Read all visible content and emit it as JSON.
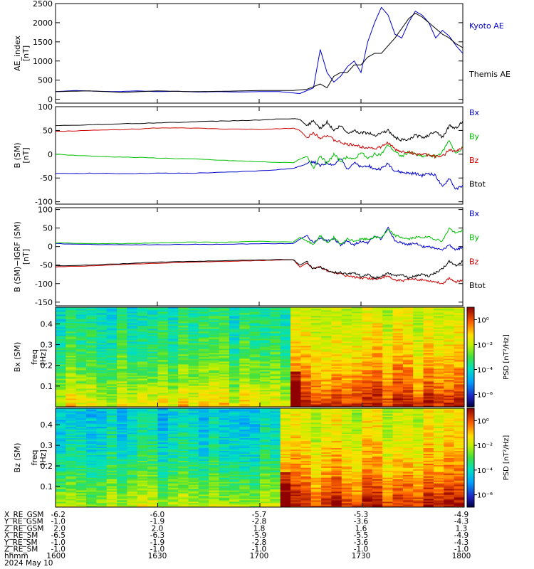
{
  "chart_data": [
    {
      "type": "line",
      "title": "",
      "ylabel": "AE_index",
      "yunit": "[nT]",
      "ylim": [
        -100,
        2500
      ],
      "yticks": [
        "2500",
        "2000",
        "1500",
        "1000",
        "500",
        "0"
      ],
      "ytick_values": [
        2500,
        2000,
        1500,
        1000,
        500,
        0
      ],
      "xlim": [
        0,
        120
      ],
      "series": [
        {
          "name": "Kyoto AE",
          "color": "#0000cc",
          "x": [
            0,
            6,
            12,
            18,
            24,
            30,
            36,
            42,
            48,
            54,
            60,
            66,
            72,
            76,
            78,
            80,
            82,
            84,
            86,
            88,
            90,
            92,
            94,
            96,
            98,
            100,
            102,
            104,
            106,
            108,
            110,
            112,
            114,
            116,
            118,
            120
          ],
          "y": [
            200,
            230,
            210,
            200,
            220,
            200,
            210,
            190,
            200,
            190,
            200,
            200,
            150,
            300,
            1300,
            700,
            450,
            600,
            850,
            1000,
            700,
            1500,
            2000,
            2400,
            2200,
            1700,
            1600,
            2000,
            2300,
            2200,
            2000,
            1600,
            1800,
            1650,
            1400,
            1200
          ]
        },
        {
          "name": "Themis AE",
          "color": "#000000",
          "x": [
            0,
            10,
            20,
            30,
            40,
            50,
            60,
            70,
            74,
            78,
            80,
            82,
            84,
            86,
            88,
            90,
            92,
            94,
            96,
            98,
            100,
            102,
            104,
            106,
            108,
            110,
            112,
            114,
            116,
            118,
            120
          ],
          "y": [
            200,
            220,
            180,
            220,
            200,
            210,
            230,
            230,
            260,
            400,
            300,
            600,
            700,
            700,
            900,
            900,
            1100,
            1200,
            1200,
            1400,
            1600,
            1850,
            2100,
            2250,
            2150,
            2000,
            1850,
            1700,
            1600,
            1450,
            1350
          ]
        }
      ]
    },
    {
      "type": "line",
      "ylabel": "B (SM)",
      "yunit": "[nT]",
      "ylim": [
        -105,
        100
      ],
      "yticks": [
        "100",
        "50",
        "0",
        "-50",
        "-100"
      ],
      "ytick_values": [
        100,
        50,
        0,
        -50,
        -100
      ],
      "xlim": [
        0,
        120
      ],
      "series": [
        {
          "name": "Bx",
          "color": "#0000cc",
          "x": [
            0,
            10,
            20,
            30,
            40,
            50,
            60,
            70,
            72,
            74,
            76,
            78,
            80,
            82,
            84,
            86,
            88,
            90,
            92,
            94,
            96,
            98,
            100,
            102,
            104,
            106,
            108,
            110,
            112,
            114,
            116,
            118,
            120
          ],
          "y": [
            -41,
            -40,
            -41,
            -40,
            -40,
            -38,
            -35,
            -30,
            -25,
            -20,
            -15,
            -25,
            -18,
            -23,
            -10,
            -30,
            -18,
            -28,
            -23,
            -32,
            -30,
            -20,
            -35,
            -38,
            -40,
            -41,
            -45,
            -40,
            -45,
            -70,
            -50,
            -75,
            -65
          ]
        },
        {
          "name": "By",
          "color": "#00c000",
          "x": [
            0,
            10,
            20,
            30,
            40,
            50,
            60,
            70,
            72,
            74,
            76,
            78,
            80,
            82,
            84,
            86,
            88,
            90,
            92,
            94,
            96,
            98,
            100,
            102,
            104,
            106,
            108,
            110,
            112,
            114,
            116,
            118,
            120
          ],
          "y": [
            0,
            -4,
            -6,
            -8,
            -10,
            -13,
            -16,
            -18,
            -10,
            -5,
            -30,
            -2,
            -20,
            0,
            -15,
            -5,
            -12,
            5,
            -10,
            0,
            0,
            20,
            5,
            -5,
            5,
            0,
            -5,
            -2,
            -5,
            5,
            30,
            0,
            15
          ]
        },
        {
          "name": "Bz",
          "color": "#cc0000",
          "x": [
            0,
            10,
            20,
            30,
            40,
            50,
            60,
            70,
            72,
            74,
            76,
            78,
            80,
            82,
            84,
            86,
            88,
            90,
            92,
            94,
            96,
            98,
            100,
            102,
            104,
            106,
            108,
            110,
            112,
            114,
            116,
            118,
            120
          ],
          "y": [
            48,
            50,
            52,
            55,
            55,
            53,
            52,
            55,
            50,
            35,
            45,
            35,
            40,
            30,
            25,
            20,
            20,
            15,
            15,
            12,
            15,
            25,
            10,
            5,
            5,
            0,
            0,
            -2,
            -5,
            -5,
            10,
            5,
            15
          ]
        },
        {
          "name": "Btot",
          "color": "#000000",
          "x": [
            0,
            10,
            20,
            30,
            40,
            50,
            60,
            70,
            72,
            74,
            76,
            78,
            80,
            82,
            84,
            86,
            88,
            90,
            92,
            94,
            96,
            98,
            100,
            102,
            104,
            106,
            108,
            110,
            112,
            114,
            116,
            118,
            120
          ],
          "y": [
            60,
            62,
            64,
            66,
            68,
            70,
            72,
            75,
            73,
            60,
            70,
            55,
            68,
            50,
            60,
            45,
            50,
            45,
            45,
            40,
            45,
            50,
            35,
            30,
            30,
            40,
            35,
            40,
            50,
            35,
            60,
            55,
            70
          ]
        }
      ]
    },
    {
      "type": "line",
      "ylabel": "B (SM)−IGRF (SM)",
      "yunit": "[nT]",
      "ylim": [
        -160,
        105
      ],
      "yticks": [
        "100",
        "50",
        "0",
        "-50",
        "-100",
        "-150"
      ],
      "ytick_values": [
        100,
        50,
        0,
        -50,
        -100,
        -150
      ],
      "xlim": [
        0,
        120
      ],
      "series": [
        {
          "name": "Bx",
          "color": "#0000cc",
          "x": [
            0,
            10,
            20,
            30,
            40,
            50,
            60,
            70,
            72,
            74,
            76,
            78,
            80,
            82,
            84,
            86,
            88,
            90,
            92,
            94,
            96,
            98,
            100,
            102,
            104,
            106,
            108,
            110,
            112,
            114,
            116,
            118,
            120
          ],
          "y": [
            8,
            6,
            5,
            5,
            6,
            6,
            8,
            8,
            20,
            30,
            10,
            25,
            15,
            20,
            5,
            15,
            5,
            15,
            10,
            30,
            20,
            50,
            15,
            10,
            5,
            10,
            0,
            0,
            -5,
            -10,
            5,
            -10,
            0
          ]
        },
        {
          "name": "By",
          "color": "#00c000",
          "x": [
            0,
            10,
            20,
            30,
            40,
            50,
            60,
            70,
            72,
            74,
            76,
            78,
            80,
            82,
            84,
            86,
            88,
            90,
            92,
            94,
            96,
            98,
            100,
            102,
            104,
            106,
            108,
            110,
            112,
            114,
            116,
            118,
            120
          ],
          "y": [
            10,
            8,
            8,
            10,
            12,
            12,
            14,
            12,
            25,
            15,
            5,
            30,
            10,
            25,
            5,
            20,
            15,
            20,
            20,
            25,
            25,
            45,
            30,
            25,
            20,
            25,
            25,
            25,
            20,
            15,
            50,
            35,
            45
          ]
        },
        {
          "name": "Bz",
          "color": "#cc0000",
          "x": [
            0,
            10,
            20,
            30,
            40,
            50,
            60,
            70,
            72,
            74,
            76,
            78,
            80,
            82,
            84,
            86,
            88,
            90,
            92,
            94,
            96,
            98,
            100,
            102,
            104,
            106,
            108,
            110,
            112,
            114,
            116,
            118,
            120
          ],
          "y": [
            -55,
            -52,
            -48,
            -45,
            -42,
            -40,
            -38,
            -35,
            -55,
            -45,
            -60,
            -55,
            -65,
            -70,
            -75,
            -80,
            -82,
            -85,
            -85,
            -88,
            -85,
            -80,
            -90,
            -92,
            -90,
            -88,
            -90,
            -92,
            -95,
            -100,
            -85,
            -95,
            -90
          ]
        },
        {
          "name": "Btot",
          "color": "#000000",
          "x": [
            0,
            10,
            20,
            30,
            40,
            50,
            60,
            70,
            72,
            74,
            76,
            78,
            80,
            82,
            84,
            86,
            88,
            90,
            92,
            94,
            96,
            98,
            100,
            102,
            104,
            106,
            108,
            110,
            112,
            114,
            116,
            118,
            120
          ],
          "y": [
            -52,
            -50,
            -46,
            -42,
            -40,
            -38,
            -36,
            -35,
            -50,
            -40,
            -60,
            -55,
            -65,
            -70,
            -70,
            -75,
            -70,
            -80,
            -75,
            -85,
            -80,
            -70,
            -80,
            -75,
            -85,
            -80,
            -75,
            -80,
            -70,
            -60,
            -40,
            -50,
            -40
          ]
        }
      ]
    },
    {
      "type": "heatmap",
      "ylabel": "Bx (SM)",
      "ylabel2": "freq",
      "yunit": "[Hz]",
      "ylim": [
        0,
        0.48
      ],
      "yticks": [
        "0.4",
        "0.3",
        "0.2",
        "0.1"
      ],
      "ytick_values": [
        0.4,
        0.3,
        0.2,
        0.1
      ],
      "xlim": [
        0,
        120
      ],
      "colorbar": {
        "label": "PSD [nT²/Hz]",
        "ticks": [
          "10⁰",
          "10⁻²",
          "10⁻⁴",
          "10⁻⁶"
        ],
        "tick_exponents": [
          0,
          -2,
          -4,
          -6
        ],
        "range": [
          -7,
          1
        ]
      }
    },
    {
      "type": "heatmap",
      "ylabel": "Bz (SM)",
      "ylabel2": "freq",
      "yunit": "[Hz]",
      "ylim": [
        0,
        0.48
      ],
      "yticks": [
        "0.4",
        "0.3",
        "0.2",
        "0.1"
      ],
      "ytick_values": [
        0.4,
        0.3,
        0.2,
        0.1
      ],
      "xlim": [
        0,
        120
      ],
      "colorbar": {
        "label": "PSD [nT²/Hz]",
        "ticks": [
          "10⁰",
          "10⁻²",
          "10⁻⁴",
          "10⁻⁶"
        ],
        "tick_exponents": [
          0,
          -2,
          -4,
          -6
        ],
        "range": [
          -7,
          1
        ]
      }
    }
  ],
  "ephemeris": {
    "rows": [
      {
        "label": "X_RE_GSM",
        "values": [
          "-6.2",
          "-6.0",
          "-5.7",
          "-5.3",
          "-4.9"
        ]
      },
      {
        "label": "Y_RE_GSM",
        "values": [
          "-1.0",
          "-1.9",
          "-2.8",
          "-3.6",
          "-4.3"
        ]
      },
      {
        "label": "Z_RE_GSM",
        "values": [
          "2.0",
          "2.0",
          "1.8",
          "1.6",
          "1.3"
        ]
      },
      {
        "label": "X_RE_SM",
        "values": [
          "-6.5",
          "-6.3",
          "-5.9",
          "-5.5",
          "-4.9"
        ]
      },
      {
        "label": "Y_RE_SM",
        "values": [
          "-1.0",
          "-1.9",
          "-2.8",
          "-3.6",
          "-4.3"
        ]
      },
      {
        "label": "Z_RE_SM",
        "values": [
          "-1.0",
          "-1.0",
          "-1.0",
          "-1.0",
          "-1.0"
        ]
      },
      {
        "label": "hhmm",
        "values": [
          "1600",
          "1630",
          "1700",
          "1730",
          "1800"
        ]
      }
    ],
    "date": "2024 May 10",
    "tick_minutes": [
      0,
      30,
      60,
      90,
      120
    ]
  }
}
